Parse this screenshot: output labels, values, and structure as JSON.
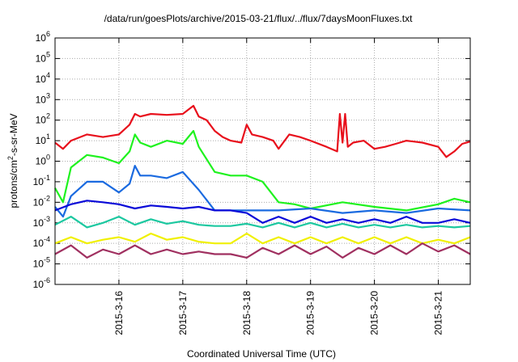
{
  "chart_data": {
    "type": "line",
    "title": "/data/run/goesPlots/archive/2015-03-21/flux/../flux/7daysMoonFluxes.txt",
    "xlabel": "Coordinated Universal Time (UTC)",
    "ylabel": {
      "prefix": "protons/cm",
      "sup": "2",
      "suffix": "-s-sr-MeV"
    },
    "yscale": "log",
    "ylim": [
      1e-06,
      1000000.0
    ],
    "y_ticks": [
      {
        "base": "10",
        "exp": "-6"
      },
      {
        "base": "10",
        "exp": "-5"
      },
      {
        "base": "10",
        "exp": "-4"
      },
      {
        "base": "10",
        "exp": "-3"
      },
      {
        "base": "10",
        "exp": "-2"
      },
      {
        "base": "10",
        "exp": "-1"
      },
      {
        "base": "10",
        "exp": "0"
      },
      {
        "base": "10",
        "exp": "1"
      },
      {
        "base": "10",
        "exp": "2"
      },
      {
        "base": "10",
        "exp": "3"
      },
      {
        "base": "10",
        "exp": "4"
      },
      {
        "base": "10",
        "exp": "5"
      },
      {
        "base": "10",
        "exp": "6"
      }
    ],
    "xlim": [
      "2015-03-15T00:00",
      "2015-03-21T12:00"
    ],
    "x_ticks": [
      "2015-3-16",
      "2015-3-17",
      "2015-3-18",
      "2015-3-19",
      "2015-3-20",
      "2015-3-21"
    ],
    "grid": true,
    "series": [
      {
        "color": "#e8101c",
        "x": [
          "2015-03-15T00:00",
          "2015-03-15T03:00",
          "2015-03-15T06:00",
          "2015-03-15T12:00",
          "2015-03-15T18:00",
          "2015-03-16T00:00",
          "2015-03-16T04:00",
          "2015-03-16T06:00",
          "2015-03-16T08:00",
          "2015-03-16T12:00",
          "2015-03-16T18:00",
          "2015-03-17T00:00",
          "2015-03-17T04:00",
          "2015-03-17T06:00",
          "2015-03-17T09:00",
          "2015-03-17T12:00",
          "2015-03-17T15:00",
          "2015-03-17T18:00",
          "2015-03-17T22:00",
          "2015-03-18T00:00",
          "2015-03-18T02:00",
          "2015-03-18T06:00",
          "2015-03-18T10:00",
          "2015-03-18T12:00",
          "2015-03-18T16:00",
          "2015-03-18T20:00",
          "2015-03-19T00:00",
          "2015-03-19T06:00",
          "2015-03-19T10:00",
          "2015-03-19T11:00",
          "2015-03-19T12:00",
          "2015-03-19T13:00",
          "2015-03-19T14:00",
          "2015-03-19T16:00",
          "2015-03-19T20:00",
          "2015-03-20T00:00",
          "2015-03-20T04:00",
          "2015-03-20T08:00",
          "2015-03-20T12:00",
          "2015-03-20T18:00",
          "2015-03-21T00:00",
          "2015-03-21T03:00",
          "2015-03-21T06:00",
          "2015-03-21T09:00",
          "2015-03-21T12:00"
        ],
        "y": [
          8,
          4,
          10,
          20,
          15,
          20,
          60,
          200,
          150,
          200,
          180,
          200,
          500,
          150,
          100,
          30,
          15,
          10,
          8,
          60,
          20,
          15,
          10,
          4,
          20,
          15,
          10,
          5,
          3,
          200,
          8,
          200,
          5,
          8,
          10,
          4,
          5,
          7,
          10,
          8,
          5,
          1.6,
          3,
          7,
          9
        ]
      },
      {
        "color": "#1ff21f",
        "x": [
          "2015-03-15T00:00",
          "2015-03-15T03:00",
          "2015-03-15T06:00",
          "2015-03-15T12:00",
          "2015-03-15T18:00",
          "2015-03-16T00:00",
          "2015-03-16T04:00",
          "2015-03-16T06:00",
          "2015-03-16T08:00",
          "2015-03-16T12:00",
          "2015-03-16T18:00",
          "2015-03-17T00:00",
          "2015-03-17T04:00",
          "2015-03-17T06:00",
          "2015-03-17T12:00",
          "2015-03-17T18:00",
          "2015-03-18T00:00",
          "2015-03-18T06:00",
          "2015-03-18T12:00",
          "2015-03-18T18:00",
          "2015-03-19T00:00",
          "2015-03-19T12:00",
          "2015-03-20T00:00",
          "2015-03-20T12:00",
          "2015-03-21T00:00",
          "2015-03-21T06:00",
          "2015-03-21T12:00"
        ],
        "y": [
          0.05,
          0.01,
          0.5,
          2,
          1.5,
          0.8,
          3,
          20,
          8,
          5,
          10,
          7,
          30,
          5,
          0.3,
          0.2,
          0.2,
          0.1,
          0.01,
          0.008,
          0.005,
          0.01,
          0.006,
          0.004,
          0.008,
          0.015,
          0.01
        ]
      },
      {
        "color": "#1a6ae0",
        "x": [
          "2015-03-15T00:00",
          "2015-03-15T03:00",
          "2015-03-15T06:00",
          "2015-03-15T12:00",
          "2015-03-15T18:00",
          "2015-03-16T00:00",
          "2015-03-16T04:00",
          "2015-03-16T06:00",
          "2015-03-16T08:00",
          "2015-03-16T12:00",
          "2015-03-16T18:00",
          "2015-03-17T00:00",
          "2015-03-17T06:00",
          "2015-03-17T12:00",
          "2015-03-17T18:00",
          "2015-03-18T00:00",
          "2015-03-18T12:00",
          "2015-03-19T00:00",
          "2015-03-19T12:00",
          "2015-03-20T00:00",
          "2015-03-20T12:00",
          "2015-03-21T00:00",
          "2015-03-21T12:00"
        ],
        "y": [
          0.006,
          0.002,
          0.02,
          0.1,
          0.1,
          0.03,
          0.08,
          0.6,
          0.2,
          0.2,
          0.15,
          0.3,
          0.04,
          0.004,
          0.004,
          0.004,
          0.004,
          0.005,
          0.003,
          0.004,
          0.003,
          0.005,
          0.004
        ]
      },
      {
        "color": "#0a0ad8",
        "x": [
          "2015-03-15T00:00",
          "2015-03-15T06:00",
          "2015-03-15T12:00",
          "2015-03-15T18:00",
          "2015-03-16T00:00",
          "2015-03-16T06:00",
          "2015-03-16T12:00",
          "2015-03-16T18:00",
          "2015-03-17T00:00",
          "2015-03-17T06:00",
          "2015-03-17T12:00",
          "2015-03-17T18:00",
          "2015-03-18T00:00",
          "2015-03-18T06:00",
          "2015-03-18T12:00",
          "2015-03-18T18:00",
          "2015-03-19T00:00",
          "2015-03-19T06:00",
          "2015-03-19T12:00",
          "2015-03-19T18:00",
          "2015-03-20T00:00",
          "2015-03-20T06:00",
          "2015-03-20T12:00",
          "2015-03-20T18:00",
          "2015-03-21T00:00",
          "2015-03-21T06:00",
          "2015-03-21T12:00"
        ],
        "y": [
          0.004,
          0.008,
          0.012,
          0.01,
          0.008,
          0.005,
          0.007,
          0.006,
          0.005,
          0.006,
          0.004,
          0.004,
          0.003,
          0.001,
          0.002,
          0.001,
          0.002,
          0.001,
          0.0015,
          0.001,
          0.0015,
          0.001,
          0.002,
          0.001,
          0.001,
          0.0015,
          0.001
        ]
      },
      {
        "color": "#1cc8a0",
        "x": [
          "2015-03-15T00:00",
          "2015-03-15T06:00",
          "2015-03-15T12:00",
          "2015-03-15T18:00",
          "2015-03-16T00:00",
          "2015-03-16T06:00",
          "2015-03-16T12:00",
          "2015-03-16T18:00",
          "2015-03-17T00:00",
          "2015-03-17T06:00",
          "2015-03-17T12:00",
          "2015-03-17T18:00",
          "2015-03-18T00:00",
          "2015-03-18T06:00",
          "2015-03-18T12:00",
          "2015-03-18T18:00",
          "2015-03-19T00:00",
          "2015-03-19T06:00",
          "2015-03-19T12:00",
          "2015-03-19T18:00",
          "2015-03-20T00:00",
          "2015-03-20T06:00",
          "2015-03-20T12:00",
          "2015-03-20T18:00",
          "2015-03-21T00:00",
          "2015-03-21T06:00",
          "2015-03-21T12:00"
        ],
        "y": [
          0.0008,
          0.002,
          0.0006,
          0.001,
          0.002,
          0.0008,
          0.0015,
          0.0009,
          0.0012,
          0.0008,
          0.0007,
          0.0007,
          0.0009,
          0.0006,
          0.001,
          0.0006,
          0.001,
          0.0006,
          0.0009,
          0.0006,
          0.0008,
          0.0006,
          0.0008,
          0.0006,
          0.0007,
          0.0006,
          0.0007
        ]
      },
      {
        "color": "#f0f000",
        "x": [
          "2015-03-15T00:00",
          "2015-03-15T06:00",
          "2015-03-15T12:00",
          "2015-03-15T18:00",
          "2015-03-16T00:00",
          "2015-03-16T06:00",
          "2015-03-16T12:00",
          "2015-03-16T18:00",
          "2015-03-17T00:00",
          "2015-03-17T06:00",
          "2015-03-17T12:00",
          "2015-03-17T18:00",
          "2015-03-18T00:00",
          "2015-03-18T06:00",
          "2015-03-18T12:00",
          "2015-03-18T18:00",
          "2015-03-19T00:00",
          "2015-03-19T06:00",
          "2015-03-19T12:00",
          "2015-03-19T18:00",
          "2015-03-20T00:00",
          "2015-03-20T06:00",
          "2015-03-20T12:00",
          "2015-03-20T18:00",
          "2015-03-21T00:00",
          "2015-03-21T06:00",
          "2015-03-21T12:00"
        ],
        "y": [
          0.0001,
          0.0002,
          0.0001,
          0.00015,
          0.0002,
          0.00012,
          0.0003,
          0.00015,
          0.0002,
          0.00012,
          0.0001,
          0.0001,
          0.0003,
          0.0001,
          0.0002,
          0.0001,
          0.0002,
          0.0001,
          0.0002,
          0.0001,
          0.0002,
          0.0001,
          0.0002,
          0.0001,
          0.00015,
          0.0001,
          0.0002
        ]
      },
      {
        "color": "#a03060",
        "x": [
          "2015-03-15T00:00",
          "2015-03-15T06:00",
          "2015-03-15T12:00",
          "2015-03-15T18:00",
          "2015-03-16T00:00",
          "2015-03-16T06:00",
          "2015-03-16T12:00",
          "2015-03-16T18:00",
          "2015-03-17T00:00",
          "2015-03-17T06:00",
          "2015-03-17T12:00",
          "2015-03-17T18:00",
          "2015-03-18T00:00",
          "2015-03-18T06:00",
          "2015-03-18T12:00",
          "2015-03-18T18:00",
          "2015-03-19T00:00",
          "2015-03-19T06:00",
          "2015-03-19T12:00",
          "2015-03-19T18:00",
          "2015-03-20T00:00",
          "2015-03-20T06:00",
          "2015-03-20T12:00",
          "2015-03-20T18:00",
          "2015-03-21T00:00",
          "2015-03-21T06:00",
          "2015-03-21T12:00"
        ],
        "y": [
          3e-05,
          8e-05,
          2e-05,
          5e-05,
          3e-05,
          8e-05,
          3e-05,
          5e-05,
          3e-05,
          4e-05,
          3e-05,
          3e-05,
          2e-05,
          6e-05,
          3e-05,
          8e-05,
          3e-05,
          7e-05,
          2e-05,
          6e-05,
          3e-05,
          8e-05,
          3e-05,
          0.0001,
          4e-05,
          8e-05,
          3e-05
        ]
      }
    ]
  }
}
